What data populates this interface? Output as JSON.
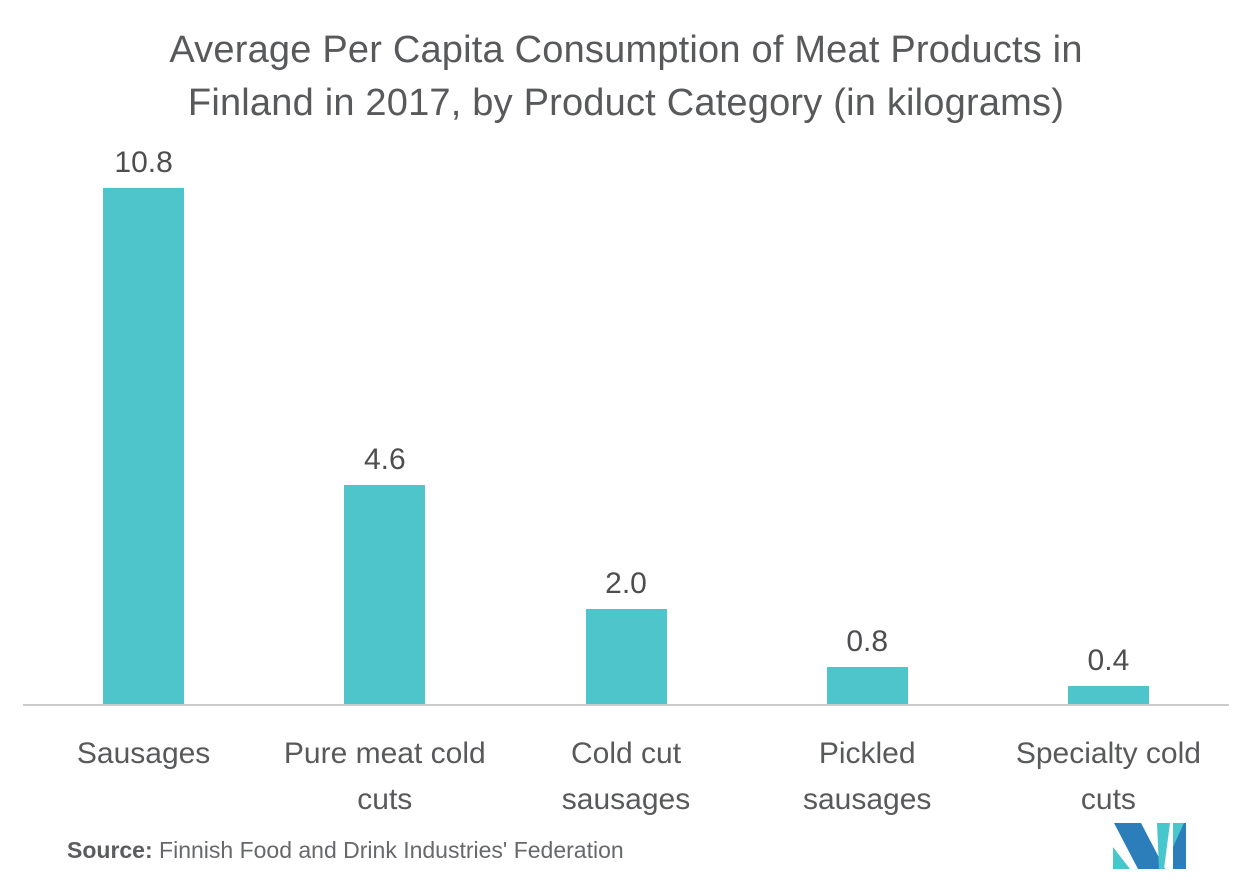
{
  "chart_data": {
    "type": "bar",
    "title": "Average Per Capita Consumption of Meat Products in Finland in 2017, by Product Category (in kilograms)",
    "title_lines": "Average Per Capita Consumption of Meat Products in\nFinland in 2017, by Product Category (in kilograms)",
    "categories": [
      "Sausages",
      "Pure meat cold cuts",
      "Cold cut sausages",
      "Pickled sausages",
      "Specialty cold cuts"
    ],
    "category_labels": [
      "Sausages",
      "Pure meat cold\ncuts",
      "Cold cut\nsausages",
      "Pickled\nsausages",
      "Specialty cold\ncuts"
    ],
    "values": [
      10.8,
      4.6,
      2.0,
      0.8,
      0.4
    ],
    "value_labels": [
      "10.8",
      "4.6",
      "2.0",
      "0.8",
      "0.4"
    ],
    "unit": "kilograms",
    "ylabel": "",
    "xlabel": "",
    "ylim": [
      0,
      11.8
    ],
    "grid": "off",
    "legend": "none"
  },
  "source": {
    "label": "Source:",
    "text": " Finnish Food and Drink Industries' Federation"
  },
  "colors": {
    "bar": "#4EC4CB",
    "axis_line": "#CBCCCD",
    "title_text": "#58595B",
    "value_text": "#4D4E50",
    "logo_blue": "#2C7EBB",
    "logo_teal": "#47C6CC"
  }
}
